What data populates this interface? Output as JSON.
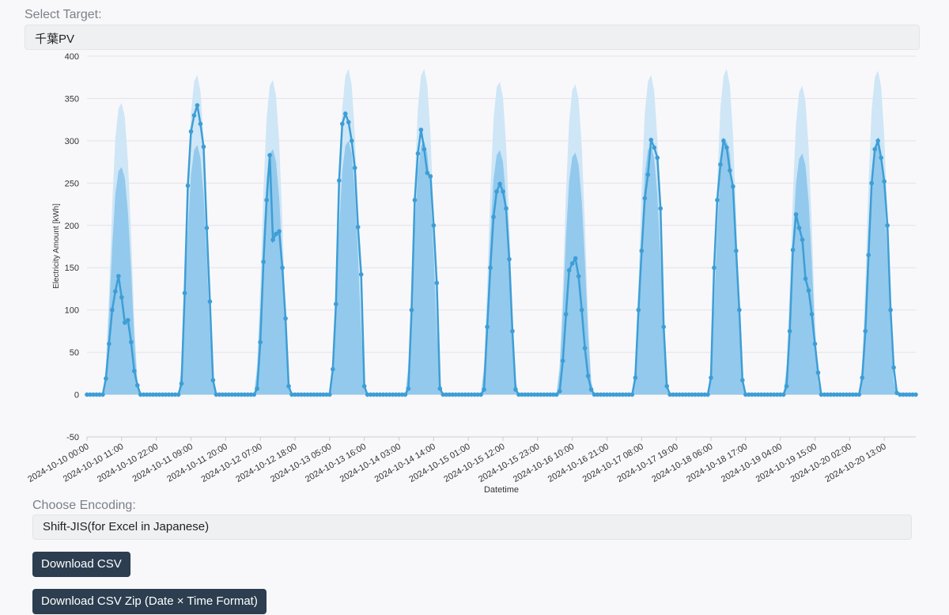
{
  "select_target": {
    "label": "Select Target:",
    "value": "千葉PV"
  },
  "encoding": {
    "label": "Choose Encoding:",
    "value": "Shift-JIS(for Excel in Japanese)"
  },
  "buttons": [
    "Download CSV",
    "Download CSV Zip (Date × Time Format)"
  ],
  "chart_data": {
    "type": "line",
    "xlabel": "Datetime",
    "ylabel": "Electricity Amount [kWh]",
    "ylim": [
      -50,
      400
    ],
    "yticks": [
      -50,
      0,
      50,
      100,
      150,
      200,
      250,
      300,
      350,
      400
    ],
    "grid": true,
    "xticks": [
      "2024-10-10 00:00",
      "2024-10-10 11:00",
      "2024-10-10 22:00",
      "2024-10-11 09:00",
      "2024-10-11 20:00",
      "2024-10-12 07:00",
      "2024-10-12 18:00",
      "2024-10-13 05:00",
      "2024-10-13 16:00",
      "2024-10-14 03:00",
      "2024-10-14 14:00",
      "2024-10-15 01:00",
      "2024-10-15 12:00",
      "2024-10-15 23:00",
      "2024-10-16 10:00",
      "2024-10-16 21:00",
      "2024-10-17 08:00",
      "2024-10-17 19:00",
      "2024-10-18 06:00",
      "2024-10-18 17:00",
      "2024-10-19 04:00",
      "2024-10-19 15:00",
      "2024-10-20 02:00",
      "2024-10-20 13:00"
    ],
    "x": [
      "2024-10-10 00:00",
      "2024-10-10 01:00",
      "2024-10-10 02:00",
      "2024-10-10 03:00",
      "2024-10-10 04:00",
      "2024-10-10 05:00",
      "2024-10-10 06:00",
      "2024-10-10 07:00",
      "2024-10-10 08:00",
      "2024-10-10 09:00",
      "2024-10-10 10:00",
      "2024-10-10 11:00",
      "2024-10-10 12:00",
      "2024-10-10 13:00",
      "2024-10-10 14:00",
      "2024-10-10 15:00",
      "2024-10-10 16:00",
      "2024-10-10 17:00",
      "2024-10-10 18:00",
      "2024-10-10 19:00",
      "2024-10-10 20:00",
      "2024-10-10 21:00",
      "2024-10-10 22:00",
      "2024-10-10 23:00",
      "2024-10-11 00:00",
      "2024-10-11 01:00",
      "2024-10-11 02:00",
      "2024-10-11 03:00",
      "2024-10-11 04:00",
      "2024-10-11 05:00",
      "2024-10-11 06:00",
      "2024-10-11 07:00",
      "2024-10-11 08:00",
      "2024-10-11 09:00",
      "2024-10-11 10:00",
      "2024-10-11 11:00",
      "2024-10-11 12:00",
      "2024-10-11 13:00",
      "2024-10-11 14:00",
      "2024-10-11 15:00",
      "2024-10-11 16:00",
      "2024-10-11 17:00",
      "2024-10-11 18:00",
      "2024-10-11 19:00",
      "2024-10-11 20:00",
      "2024-10-11 21:00",
      "2024-10-11 22:00",
      "2024-10-11 23:00",
      "2024-10-12 00:00",
      "2024-10-12 01:00",
      "2024-10-12 02:00",
      "2024-10-12 03:00",
      "2024-10-12 04:00",
      "2024-10-12 05:00",
      "2024-10-12 06:00",
      "2024-10-12 07:00",
      "2024-10-12 08:00",
      "2024-10-12 09:00",
      "2024-10-12 10:00",
      "2024-10-12 11:00",
      "2024-10-12 12:00",
      "2024-10-12 13:00",
      "2024-10-12 14:00",
      "2024-10-12 15:00",
      "2024-10-12 16:00",
      "2024-10-12 17:00",
      "2024-10-12 18:00",
      "2024-10-12 19:00",
      "2024-10-12 20:00",
      "2024-10-12 21:00",
      "2024-10-12 22:00",
      "2024-10-12 23:00",
      "2024-10-13 00:00",
      "2024-10-13 01:00",
      "2024-10-13 02:00",
      "2024-10-13 03:00",
      "2024-10-13 04:00",
      "2024-10-13 05:00",
      "2024-10-13 06:00",
      "2024-10-13 07:00",
      "2024-10-13 08:00",
      "2024-10-13 09:00",
      "2024-10-13 10:00",
      "2024-10-13 11:00",
      "2024-10-13 12:00",
      "2024-10-13 13:00",
      "2024-10-13 14:00",
      "2024-10-13 15:00",
      "2024-10-13 16:00",
      "2024-10-13 17:00",
      "2024-10-13 18:00",
      "2024-10-13 19:00",
      "2024-10-13 20:00",
      "2024-10-13 21:00",
      "2024-10-13 22:00",
      "2024-10-13 23:00",
      "2024-10-14 00:00",
      "2024-10-14 01:00",
      "2024-10-14 02:00",
      "2024-10-14 03:00",
      "2024-10-14 04:00",
      "2024-10-14 05:00",
      "2024-10-14 06:00",
      "2024-10-14 07:00",
      "2024-10-14 08:00",
      "2024-10-14 09:00",
      "2024-10-14 10:00",
      "2024-10-14 11:00",
      "2024-10-14 12:00",
      "2024-10-14 13:00",
      "2024-10-14 14:00",
      "2024-10-14 15:00",
      "2024-10-14 16:00",
      "2024-10-14 17:00",
      "2024-10-14 18:00",
      "2024-10-14 19:00",
      "2024-10-14 20:00",
      "2024-10-14 21:00",
      "2024-10-14 22:00",
      "2024-10-14 23:00",
      "2024-10-15 00:00",
      "2024-10-15 01:00",
      "2024-10-15 02:00",
      "2024-10-15 03:00",
      "2024-10-15 04:00",
      "2024-10-15 05:00",
      "2024-10-15 06:00",
      "2024-10-15 07:00",
      "2024-10-15 08:00",
      "2024-10-15 09:00",
      "2024-10-15 10:00",
      "2024-10-15 11:00",
      "2024-10-15 12:00",
      "2024-10-15 13:00",
      "2024-10-15 14:00",
      "2024-10-15 15:00",
      "2024-10-15 16:00",
      "2024-10-15 17:00",
      "2024-10-15 18:00",
      "2024-10-15 19:00",
      "2024-10-15 20:00",
      "2024-10-15 21:00",
      "2024-10-15 22:00",
      "2024-10-15 23:00",
      "2024-10-16 00:00",
      "2024-10-16 01:00",
      "2024-10-16 02:00",
      "2024-10-16 03:00",
      "2024-10-16 04:00",
      "2024-10-16 05:00",
      "2024-10-16 06:00",
      "2024-10-16 07:00",
      "2024-10-16 08:00",
      "2024-10-16 09:00",
      "2024-10-16 10:00",
      "2024-10-16 11:00",
      "2024-10-16 12:00",
      "2024-10-16 13:00",
      "2024-10-16 14:00",
      "2024-10-16 15:00",
      "2024-10-16 16:00",
      "2024-10-16 17:00",
      "2024-10-16 18:00",
      "2024-10-16 19:00",
      "2024-10-16 20:00",
      "2024-10-16 21:00",
      "2024-10-16 22:00",
      "2024-10-16 23:00",
      "2024-10-17 00:00",
      "2024-10-17 01:00",
      "2024-10-17 02:00",
      "2024-10-17 03:00",
      "2024-10-17 04:00",
      "2024-10-17 05:00",
      "2024-10-17 06:00",
      "2024-10-17 07:00",
      "2024-10-17 08:00",
      "2024-10-17 09:00",
      "2024-10-17 10:00",
      "2024-10-17 11:00",
      "2024-10-17 12:00",
      "2024-10-17 13:00",
      "2024-10-17 14:00",
      "2024-10-17 15:00",
      "2024-10-17 16:00",
      "2024-10-17 17:00",
      "2024-10-17 18:00",
      "2024-10-17 19:00",
      "2024-10-17 20:00",
      "2024-10-17 21:00",
      "2024-10-17 22:00",
      "2024-10-17 23:00",
      "2024-10-18 00:00",
      "2024-10-18 01:00",
      "2024-10-18 02:00",
      "2024-10-18 03:00",
      "2024-10-18 04:00",
      "2024-10-18 05:00",
      "2024-10-18 06:00",
      "2024-10-18 07:00",
      "2024-10-18 08:00",
      "2024-10-18 09:00",
      "2024-10-18 10:00",
      "2024-10-18 11:00",
      "2024-10-18 12:00",
      "2024-10-18 13:00",
      "2024-10-18 14:00",
      "2024-10-18 15:00",
      "2024-10-18 16:00",
      "2024-10-18 17:00",
      "2024-10-18 18:00",
      "2024-10-18 19:00",
      "2024-10-18 20:00",
      "2024-10-18 21:00",
      "2024-10-18 22:00",
      "2024-10-18 23:00",
      "2024-10-19 00:00",
      "2024-10-19 01:00",
      "2024-10-19 02:00",
      "2024-10-19 03:00",
      "2024-10-19 04:00",
      "2024-10-19 05:00",
      "2024-10-19 06:00",
      "2024-10-19 07:00",
      "2024-10-19 08:00",
      "2024-10-19 09:00",
      "2024-10-19 10:00",
      "2024-10-19 11:00",
      "2024-10-19 12:00",
      "2024-10-19 13:00",
      "2024-10-19 14:00",
      "2024-10-19 15:00",
      "2024-10-19 16:00",
      "2024-10-19 17:00",
      "2024-10-19 18:00",
      "2024-10-19 19:00",
      "2024-10-19 20:00",
      "2024-10-19 21:00",
      "2024-10-19 22:00",
      "2024-10-19 23:00",
      "2024-10-20 00:00",
      "2024-10-20 01:00",
      "2024-10-20 02:00",
      "2024-10-20 03:00",
      "2024-10-20 04:00",
      "2024-10-20 05:00",
      "2024-10-20 06:00",
      "2024-10-20 07:00",
      "2024-10-20 08:00",
      "2024-10-20 09:00",
      "2024-10-20 10:00",
      "2024-10-20 11:00",
      "2024-10-20 12:00",
      "2024-10-20 13:00",
      "2024-10-20 14:00",
      "2024-10-20 15:00",
      "2024-10-20 16:00",
      "2024-10-20 17:00",
      "2024-10-20 18:00",
      "2024-10-20 19:00",
      "2024-10-20 20:00",
      "2024-10-20 21:00",
      "2024-10-20 22:00",
      "2024-10-20 23:00"
    ],
    "series": [
      {
        "color": "#cfe6f6",
        "fill": true,
        "values": [
          0,
          0,
          0,
          0,
          0,
          0,
          35,
          121,
          224,
          304,
          338,
          345,
          328,
          276,
          190,
          86,
          17,
          0,
          0,
          0,
          0,
          0,
          0,
          0,
          0,
          0,
          0,
          0,
          0,
          0,
          38,
          132,
          246,
          333,
          370,
          378,
          359,
          302,
          208,
          95,
          19,
          0,
          0,
          0,
          0,
          0,
          0,
          0,
          0,
          0,
          0,
          0,
          0,
          0,
          37,
          130,
          242,
          327,
          365,
          372,
          353,
          298,
          205,
          93,
          19,
          0,
          0,
          0,
          0,
          0,
          0,
          0,
          0,
          0,
          0,
          0,
          0,
          0,
          39,
          135,
          250,
          339,
          377,
          385,
          366,
          308,
          212,
          96,
          19,
          0,
          0,
          0,
          0,
          0,
          0,
          0,
          0,
          0,
          0,
          0,
          0,
          0,
          39,
          135,
          250,
          339,
          377,
          385,
          366,
          308,
          212,
          96,
          19,
          0,
          0,
          0,
          0,
          0,
          0,
          0,
          0,
          0,
          0,
          0,
          0,
          0,
          37,
          130,
          241,
          326,
          363,
          370,
          352,
          296,
          204,
          93,
          19,
          0,
          0,
          0,
          0,
          0,
          0,
          0,
          0,
          0,
          0,
          0,
          0,
          0,
          37,
          128,
          239,
          323,
          360,
          367,
          349,
          294,
          202,
          92,
          18,
          0,
          0,
          0,
          0,
          0,
          0,
          0,
          0,
          0,
          0,
          0,
          0,
          0,
          38,
          132,
          246,
          333,
          370,
          378,
          359,
          302,
          208,
          95,
          19,
          0,
          0,
          0,
          0,
          0,
          0,
          0,
          0,
          0,
          0,
          0,
          0,
          0,
          39,
          135,
          250,
          339,
          377,
          385,
          366,
          308,
          212,
          96,
          19,
          0,
          0,
          0,
          0,
          0,
          0,
          0,
          0,
          0,
          0,
          0,
          0,
          0,
          37,
          128,
          237,
          321,
          358,
          365,
          347,
          292,
          201,
          91,
          18,
          0,
          0,
          0,
          0,
          0,
          0,
          0,
          0,
          0,
          0,
          0,
          0,
          0,
          38,
          134,
          249,
          337,
          375,
          383,
          364,
          306,
          211,
          96,
          19,
          0,
          0,
          0,
          0,
          0,
          0,
          0
        ]
      },
      {
        "color": "#93c9ec",
        "fill": true,
        "values": [
          0,
          0,
          0,
          0,
          0,
          0,
          27,
          94,
          175,
          237,
          264,
          269,
          256,
          215,
          148,
          67,
          13,
          0,
          0,
          0,
          0,
          0,
          0,
          0,
          0,
          0,
          0,
          0,
          0,
          0,
          30,
          103,
          192,
          260,
          289,
          295,
          280,
          236,
          162,
          74,
          15,
          0,
          0,
          0,
          0,
          0,
          0,
          0,
          0,
          0,
          0,
          0,
          0,
          0,
          29,
          101,
          189,
          255,
          285,
          290,
          275,
          232,
          160,
          73,
          15,
          0,
          0,
          0,
          0,
          0,
          0,
          0,
          0,
          0,
          0,
          0,
          0,
          0,
          30,
          105,
          195,
          264,
          294,
          300,
          285,
          240,
          165,
          75,
          15,
          0,
          0,
          0,
          0,
          0,
          0,
          0,
          0,
          0,
          0,
          0,
          0,
          0,
          30,
          105,
          195,
          264,
          294,
          300,
          285,
          240,
          165,
          75,
          15,
          0,
          0,
          0,
          0,
          0,
          0,
          0,
          0,
          0,
          0,
          0,
          0,
          0,
          29,
          101,
          188,
          254,
          283,
          289,
          275,
          231,
          159,
          73,
          15,
          0,
          0,
          0,
          0,
          0,
          0,
          0,
          0,
          0,
          0,
          0,
          0,
          0,
          29,
          100,
          186,
          252,
          281,
          286,
          272,
          229,
          158,
          72,
          14,
          0,
          0,
          0,
          0,
          0,
          0,
          0,
          0,
          0,
          0,
          0,
          0,
          0,
          30,
          103,
          192,
          260,
          289,
          295,
          280,
          236,
          162,
          74,
          15,
          0,
          0,
          0,
          0,
          0,
          0,
          0,
          0,
          0,
          0,
          0,
          0,
          0,
          30,
          105,
          195,
          264,
          294,
          300,
          285,
          240,
          165,
          75,
          15,
          0,
          0,
          0,
          0,
          0,
          0,
          0,
          0,
          0,
          0,
          0,
          0,
          0,
          29,
          100,
          185,
          250,
          279,
          285,
          271,
          228,
          157,
          71,
          14,
          0,
          0,
          0,
          0,
          0,
          0,
          0,
          0,
          0,
          0,
          0,
          0,
          0,
          30,
          105,
          194,
          263,
          293,
          299,
          284,
          239,
          165,
          75,
          15,
          0,
          0,
          0,
          0,
          0,
          0,
          0
        ]
      },
      {
        "color": "#3d9ed6",
        "marker": true,
        "values": [
          0,
          0,
          0,
          0,
          0,
          0,
          19,
          60,
          100,
          122,
          140,
          115,
          85,
          88,
          62,
          28,
          11,
          0,
          0,
          0,
          0,
          0,
          0,
          0,
          0,
          0,
          0,
          0,
          0,
          0,
          13,
          120,
          247,
          311,
          330,
          342,
          320,
          293,
          197,
          110,
          17,
          0,
          0,
          0,
          0,
          0,
          0,
          0,
          0,
          0,
          0,
          0,
          0,
          0,
          7,
          62,
          157,
          230,
          283,
          183,
          190,
          193,
          150,
          90,
          10,
          0,
          0,
          0,
          0,
          0,
          0,
          0,
          0,
          0,
          0,
          0,
          0,
          0,
          30,
          107,
          253,
          320,
          332,
          322,
          300,
          268,
          198,
          142,
          10,
          0,
          0,
          0,
          0,
          0,
          0,
          0,
          0,
          0,
          0,
          0,
          0,
          0,
          7,
          100,
          230,
          285,
          313,
          290,
          262,
          258,
          200,
          132,
          7,
          0,
          0,
          0,
          0,
          0,
          0,
          0,
          0,
          0,
          0,
          0,
          0,
          0,
          6,
          80,
          150,
          210,
          240,
          249,
          240,
          220,
          160,
          75,
          6,
          0,
          0,
          0,
          0,
          0,
          0,
          0,
          0,
          0,
          0,
          0,
          0,
          0,
          4,
          40,
          95,
          147,
          155,
          161,
          140,
          100,
          55,
          22,
          6,
          0,
          0,
          0,
          0,
          0,
          0,
          0,
          0,
          0,
          0,
          0,
          0,
          0,
          20,
          100,
          170,
          232,
          260,
          301,
          292,
          280,
          220,
          80,
          10,
          0,
          0,
          0,
          0,
          0,
          0,
          0,
          0,
          0,
          0,
          0,
          0,
          0,
          20,
          150,
          230,
          272,
          300,
          292,
          265,
          246,
          170,
          100,
          17,
          0,
          0,
          0,
          0,
          0,
          0,
          0,
          0,
          0,
          0,
          0,
          0,
          0,
          10,
          75,
          171,
          213,
          197,
          183,
          137,
          123,
          95,
          60,
          26,
          0,
          0,
          0,
          0,
          0,
          0,
          0,
          0,
          0,
          0,
          0,
          0,
          0,
          20,
          75,
          165,
          250,
          290,
          300,
          280,
          252,
          200,
          100,
          32,
          2,
          0,
          0,
          0,
          0,
          0,
          0
        ]
      }
    ]
  }
}
